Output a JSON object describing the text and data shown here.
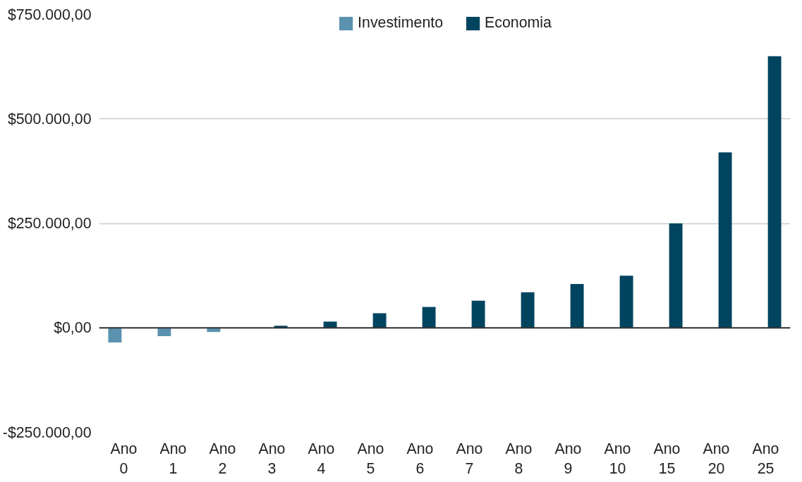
{
  "chart_data": {
    "type": "bar",
    "categories": [
      "Ano 0",
      "Ano 1",
      "Ano 2",
      "Ano 3",
      "Ano 4",
      "Ano 5",
      "Ano 6",
      "Ano 7",
      "Ano 8",
      "Ano 9",
      "Ano 10",
      "Ano 15",
      "Ano 20",
      "Ano 25"
    ],
    "series": [
      {
        "name": "Investimento",
        "color": "#5b92b0",
        "values": [
          -35000,
          -20000,
          -10000,
          null,
          null,
          null,
          null,
          null,
          null,
          null,
          null,
          null,
          null,
          null
        ]
      },
      {
        "name": "Economia",
        "color": "#00445f",
        "values": [
          null,
          null,
          null,
          5000,
          15000,
          35000,
          50000,
          65000,
          85000,
          105000,
          125000,
          250000,
          420000,
          650000
        ]
      }
    ],
    "ylim": [
      -250000,
      750000
    ],
    "yticks": [
      {
        "value": -250000,
        "label": "-$250.000,00"
      },
      {
        "value": 0,
        "label": "$0,00"
      },
      {
        "value": 250000,
        "label": "$250.000,00"
      },
      {
        "value": 500000,
        "label": "$500.000,00"
      },
      {
        "value": 750000,
        "label": "$750.000,00"
      }
    ],
    "grid": "y",
    "legend": "top"
  }
}
